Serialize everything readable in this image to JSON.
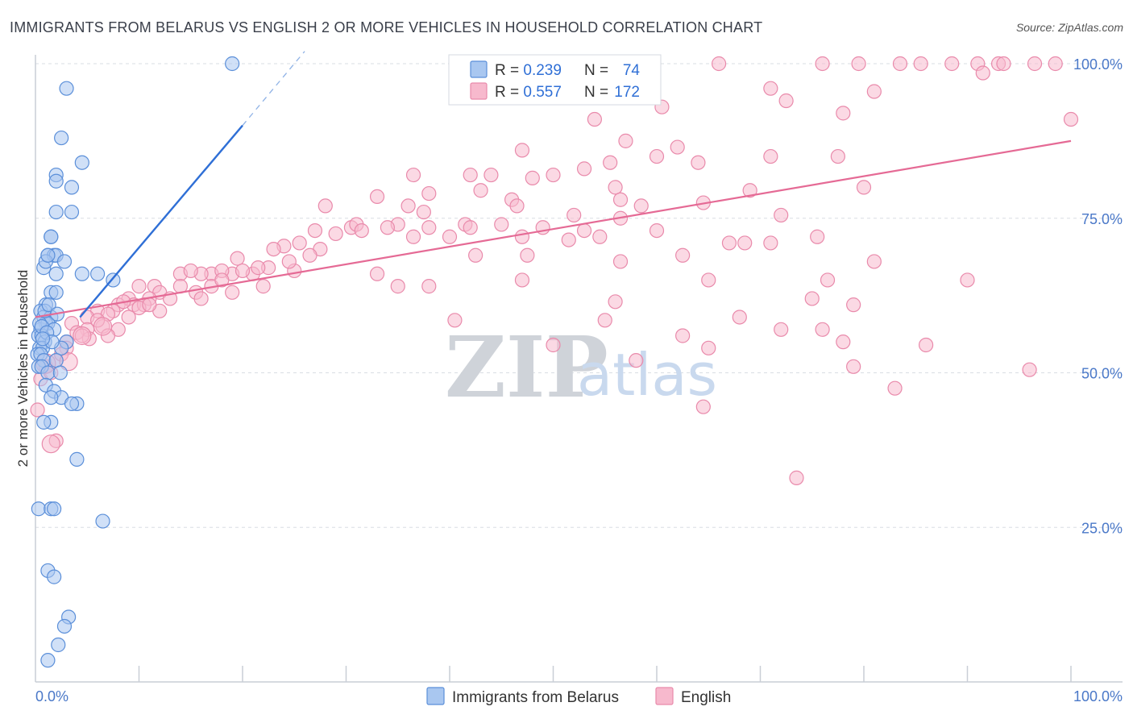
{
  "title": "IMMIGRANTS FROM BELARUS VS ENGLISH 2 OR MORE VEHICLES IN HOUSEHOLD CORRELATION CHART",
  "source": "Source: ZipAtlas.com",
  "watermark": {
    "zip": "ZIP",
    "atlas": "atlas"
  },
  "legend_top": [
    {
      "r_label": "R = ",
      "r_value": "0.239",
      "n_label": "N = ",
      "n_value": "74"
    },
    {
      "r_label": "R = ",
      "r_value": "0.557",
      "n_label": "N = ",
      "n_value": "172"
    }
  ],
  "legend_bottom": [
    "Immigrants from Belarus",
    "English"
  ],
  "colors": {
    "blue_fill": "#a9c7f0",
    "blue_stroke": "#5b8fd9",
    "blue_line": "#2f6fd6",
    "pink_fill": "#f7b9cd",
    "pink_stroke": "#e98aab",
    "pink_line": "#e56a95",
    "grid": "#d9dde3",
    "tick_label": "#4a78c8"
  },
  "chart_data": {
    "type": "scatter",
    "title": "IMMIGRANTS FROM BELARUS VS ENGLISH 2 OR MORE VEHICLES IN HOUSEHOLD CORRELATION CHART",
    "xlabel": "",
    "ylabel": "2 or more Vehicles in Household",
    "xlim": [
      0,
      100
    ],
    "ylim": [
      0,
      100
    ],
    "x_tick_labels": [
      "0.0%",
      "100.0%"
    ],
    "y_tick_labels": [
      "25.0%",
      "50.0%",
      "75.0%",
      "100.0%"
    ],
    "y_ticks": [
      25,
      50,
      75,
      100
    ],
    "series": [
      {
        "name": "Immigrants from Belarus",
        "r": 0.239,
        "n": 74,
        "trendline": {
          "x": [
            4.3,
            20
          ],
          "y": [
            59,
            90
          ]
        },
        "trendline_dashed": {
          "x": [
            20,
            26
          ],
          "y": [
            90,
            102
          ]
        },
        "points": [
          [
            19,
            100
          ],
          [
            3,
            96
          ],
          [
            2.5,
            88
          ],
          [
            4.5,
            84
          ],
          [
            2,
            82
          ],
          [
            3.5,
            80
          ],
          [
            2,
            81
          ],
          [
            2,
            76
          ],
          [
            3.5,
            76
          ],
          [
            1.5,
            72
          ],
          [
            1.5,
            72
          ],
          [
            1.2,
            69
          ],
          [
            1.8,
            69
          ],
          [
            2,
            69
          ],
          [
            2.8,
            68
          ],
          [
            0.8,
            67
          ],
          [
            1,
            68
          ],
          [
            1.2,
            69
          ],
          [
            4.5,
            66
          ],
          [
            7.5,
            65
          ],
          [
            6,
            66
          ],
          [
            2,
            66
          ],
          [
            1.5,
            63
          ],
          [
            2,
            63
          ],
          [
            1,
            61
          ],
          [
            0.5,
            60
          ],
          [
            0.8,
            59
          ],
          [
            1.5,
            59
          ],
          [
            1,
            58
          ],
          [
            0.5,
            57
          ],
          [
            1.2,
            58
          ],
          [
            0.3,
            56
          ],
          [
            0.6,
            56
          ],
          [
            1.8,
            57
          ],
          [
            0.9,
            55
          ],
          [
            3,
            55
          ],
          [
            0.4,
            54
          ],
          [
            0.7,
            54
          ],
          [
            2.5,
            54
          ],
          [
            0.2,
            53
          ],
          [
            0.5,
            53
          ],
          [
            0.8,
            52
          ],
          [
            2,
            52
          ],
          [
            0.3,
            51
          ],
          [
            0.6,
            51
          ],
          [
            1.2,
            50
          ],
          [
            2.4,
            50
          ],
          [
            1,
            48
          ],
          [
            1.8,
            47
          ],
          [
            2.5,
            46
          ],
          [
            1.5,
            46
          ],
          [
            4,
            45
          ],
          [
            3.5,
            45
          ],
          [
            1.5,
            42
          ],
          [
            0.8,
            42
          ],
          [
            4,
            36
          ],
          [
            0.3,
            28
          ],
          [
            1.5,
            28
          ],
          [
            1.8,
            28
          ],
          [
            6.5,
            26
          ],
          [
            1.2,
            18
          ],
          [
            1.8,
            17
          ],
          [
            3.2,
            10.5
          ],
          [
            2.8,
            9
          ],
          [
            2.2,
            6
          ],
          [
            1.2,
            3.5
          ],
          [
            0.4,
            58
          ],
          [
            0.6,
            57.5
          ],
          [
            1.1,
            56.5
          ],
          [
            0.9,
            60
          ],
          [
            1.3,
            61
          ],
          [
            1.6,
            55
          ],
          [
            2.1,
            59.5
          ],
          [
            0.7,
            55.5
          ]
        ]
      },
      {
        "name": "English",
        "r": 0.557,
        "n": 172,
        "trendline": {
          "x": [
            0,
            100
          ],
          "y": [
            59,
            87.5
          ]
        },
        "points": [
          [
            66,
            100
          ],
          [
            76,
            100
          ],
          [
            79.5,
            100
          ],
          [
            83.5,
            100
          ],
          [
            85.5,
            100
          ],
          [
            88.5,
            100
          ],
          [
            91,
            100
          ],
          [
            93,
            100
          ],
          [
            93.5,
            100
          ],
          [
            96.5,
            100
          ],
          [
            98.5,
            100
          ],
          [
            71,
            96
          ],
          [
            81,
            95.5
          ],
          [
            91.5,
            98.5
          ],
          [
            72.5,
            94
          ],
          [
            60.5,
            93
          ],
          [
            78,
            92
          ],
          [
            54,
            91
          ],
          [
            100,
            91
          ],
          [
            57,
            87.5
          ],
          [
            62,
            86.5
          ],
          [
            47,
            86
          ],
          [
            60,
            85
          ],
          [
            71,
            85
          ],
          [
            77.5,
            85
          ],
          [
            55.5,
            84
          ],
          [
            64,
            84
          ],
          [
            53,
            83
          ],
          [
            50,
            82
          ],
          [
            36.5,
            82
          ],
          [
            42,
            82
          ],
          [
            44,
            82
          ],
          [
            48,
            81.5
          ],
          [
            56,
            80
          ],
          [
            69,
            79.5
          ],
          [
            80,
            80
          ],
          [
            43,
            79.5
          ],
          [
            33,
            78.5
          ],
          [
            38,
            79
          ],
          [
            56.5,
            78
          ],
          [
            46,
            78
          ],
          [
            36,
            77
          ],
          [
            28,
            77
          ],
          [
            46.5,
            77
          ],
          [
            64.5,
            77.5
          ],
          [
            58.5,
            77
          ],
          [
            52,
            75.5
          ],
          [
            37.5,
            76
          ],
          [
            72,
            75.5
          ],
          [
            56.5,
            75
          ],
          [
            41.5,
            74
          ],
          [
            35,
            74
          ],
          [
            30.5,
            73.5
          ],
          [
            31,
            74
          ],
          [
            45,
            74
          ],
          [
            34,
            73.5
          ],
          [
            38,
            73.5
          ],
          [
            42,
            73.5
          ],
          [
            53,
            73
          ],
          [
            49,
            73.5
          ],
          [
            60,
            73
          ],
          [
            31.5,
            73
          ],
          [
            29,
            72.5
          ],
          [
            27,
            73
          ],
          [
            47,
            72
          ],
          [
            40,
            72
          ],
          [
            36.5,
            72
          ],
          [
            75.5,
            72
          ],
          [
            51.5,
            71.5
          ],
          [
            54.5,
            72
          ],
          [
            67,
            71
          ],
          [
            71,
            71
          ],
          [
            68.5,
            71
          ],
          [
            25.5,
            71
          ],
          [
            27.5,
            70
          ],
          [
            24,
            70.5
          ],
          [
            23,
            70
          ],
          [
            26.5,
            69
          ],
          [
            42.5,
            69
          ],
          [
            47.5,
            69
          ],
          [
            62.5,
            69
          ],
          [
            56.5,
            68
          ],
          [
            81,
            68
          ],
          [
            19.5,
            68.5
          ],
          [
            22.5,
            67
          ],
          [
            19,
            66
          ],
          [
            21,
            66
          ],
          [
            17,
            66
          ],
          [
            18,
            66.5
          ],
          [
            20,
            66.5
          ],
          [
            16,
            66
          ],
          [
            14,
            66
          ],
          [
            15,
            66.5
          ],
          [
            25,
            66.5
          ],
          [
            33,
            66
          ],
          [
            47,
            65
          ],
          [
            65,
            65
          ],
          [
            76.5,
            65
          ],
          [
            90,
            65
          ],
          [
            22,
            64
          ],
          [
            17,
            64
          ],
          [
            14,
            64
          ],
          [
            11.5,
            64
          ],
          [
            10,
            64
          ],
          [
            12,
            63
          ],
          [
            9,
            62
          ],
          [
            11,
            62
          ],
          [
            19,
            63
          ],
          [
            35,
            64
          ],
          [
            38,
            64
          ],
          [
            8,
            61
          ],
          [
            9.5,
            61
          ],
          [
            7.5,
            60
          ],
          [
            10.5,
            61
          ],
          [
            6,
            60
          ],
          [
            7,
            59.5
          ],
          [
            5,
            59
          ],
          [
            56,
            61.5
          ],
          [
            75,
            62
          ],
          [
            79,
            61
          ],
          [
            86,
            54.5
          ],
          [
            68,
            59
          ],
          [
            40.5,
            58.5
          ],
          [
            55,
            58.5
          ],
          [
            72,
            57
          ],
          [
            3.5,
            58
          ],
          [
            5,
            57
          ],
          [
            4,
            56.5
          ],
          [
            6.5,
            57.5
          ],
          [
            8,
            57
          ],
          [
            7,
            56
          ],
          [
            3,
            55
          ],
          [
            2,
            52
          ],
          [
            3,
            54
          ],
          [
            5.2,
            55.5
          ],
          [
            1,
            51
          ],
          [
            0.5,
            49
          ],
          [
            0.2,
            44
          ],
          [
            2,
            39
          ],
          [
            64.5,
            44.5
          ],
          [
            73.5,
            33
          ],
          [
            83,
            47.5
          ],
          [
            96,
            50.5
          ],
          [
            58,
            52
          ],
          [
            50,
            54.5
          ],
          [
            78,
            55
          ],
          [
            62.5,
            56
          ],
          [
            65,
            54
          ],
          [
            79,
            51
          ],
          [
            76,
            57
          ],
          [
            4.5,
            56
          ],
          [
            2.5,
            53
          ],
          [
            1.5,
            50
          ],
          [
            13,
            62
          ],
          [
            15.5,
            63
          ],
          [
            18,
            65
          ],
          [
            21.5,
            67
          ],
          [
            24.5,
            68
          ],
          [
            10,
            60.5
          ],
          [
            8.5,
            61.5
          ],
          [
            6,
            58.5
          ],
          [
            12,
            60
          ],
          [
            16,
            62
          ],
          [
            9,
            59
          ],
          [
            11,
            61
          ]
        ]
      }
    ]
  }
}
